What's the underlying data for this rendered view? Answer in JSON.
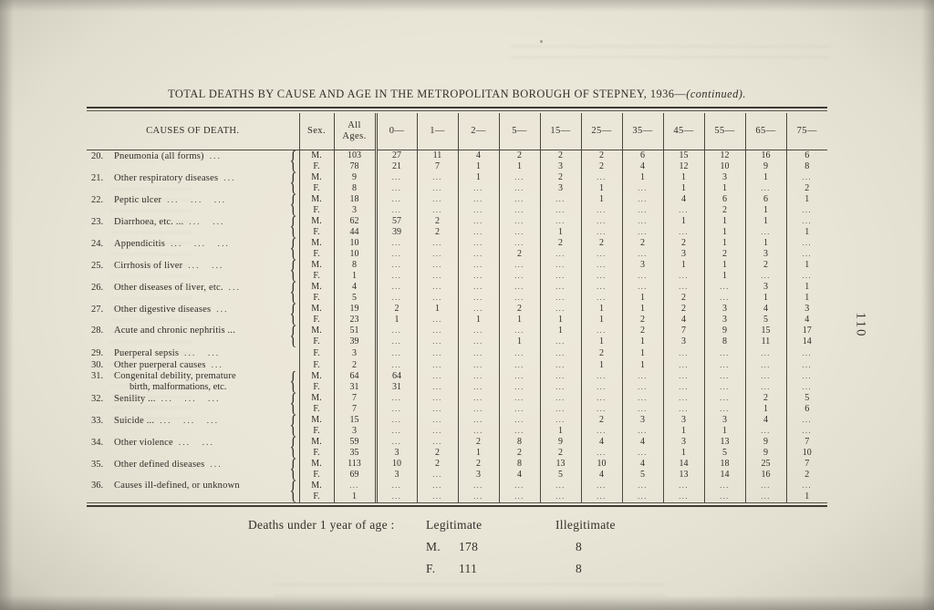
{
  "page": {
    "title_main": "TOTAL DEATHS BY CAUSE AND AGE IN THE METROPOLITAN BOROUGH OF STEPNEY, 1936—",
    "title_continued": "(continued).",
    "page_number": "110"
  },
  "table": {
    "headers": [
      "CAUSES OF DEATH.",
      "Sex.",
      "All\nAges.",
      "0—",
      "1—",
      "2—",
      "5—",
      "15—",
      "25—",
      "35—",
      "45—",
      "55—",
      "65—",
      "75—"
    ],
    "causes": [
      {
        "no": "20.",
        "label": "Pneumonia (all forms)",
        "leader": "...",
        "brace": true,
        "rows": [
          {
            "sex": "M.",
            "values": [
              "103",
              "27",
              "11",
              "4",
              "2",
              "2",
              "2",
              "6",
              "15",
              "12",
              "16",
              "6"
            ]
          },
          {
            "sex": "F.",
            "values": [
              "78",
              "21",
              "7",
              "1",
              "1",
              "3",
              "2",
              "4",
              "12",
              "10",
              "9",
              "8"
            ]
          }
        ]
      },
      {
        "no": "21.",
        "label": "Other respiratory diseases",
        "leader": "...",
        "brace": true,
        "rows": [
          {
            "sex": "M.",
            "values": [
              "9",
              "...",
              "...",
              "1",
              "...",
              "2",
              "...",
              "1",
              "1",
              "3",
              "1",
              "..."
            ]
          },
          {
            "sex": "F.",
            "values": [
              "8",
              "...",
              "...",
              "...",
              "...",
              "3",
              "1",
              "...",
              "1",
              "1",
              "...",
              "2"
            ]
          }
        ]
      },
      {
        "no": "22.",
        "label": "Peptic ulcer",
        "leader": "... ... ...",
        "brace": true,
        "rows": [
          {
            "sex": "M.",
            "values": [
              "18",
              "...",
              "...",
              "...",
              "...",
              "...",
              "1",
              "...",
              "4",
              "6",
              "6",
              "1"
            ]
          },
          {
            "sex": "F.",
            "values": [
              "3",
              "...",
              "...",
              "...",
              "...",
              "...",
              "...",
              "...",
              "...",
              "2",
              "1",
              "..."
            ]
          }
        ]
      },
      {
        "no": "23.",
        "label": "Diarrhoea, etc. ...",
        "leader": "... ...",
        "brace": true,
        "rows": [
          {
            "sex": "M.",
            "values": [
              "62",
              "57",
              "2",
              "...",
              "...",
              "...",
              "...",
              "...",
              "1",
              "1",
              "1",
              "..."
            ]
          },
          {
            "sex": "F.",
            "values": [
              "44",
              "39",
              "2",
              "...",
              "...",
              "1",
              "...",
              "...",
              "...",
              "1",
              "...",
              "1"
            ]
          }
        ]
      },
      {
        "no": "24.",
        "label": "Appendicitis",
        "leader": "... ... ...",
        "brace": true,
        "rows": [
          {
            "sex": "M.",
            "values": [
              "10",
              "...",
              "...",
              "...",
              "...",
              "2",
              "2",
              "2",
              "2",
              "1",
              "1",
              "..."
            ]
          },
          {
            "sex": "F.",
            "values": [
              "10",
              "...",
              "...",
              "...",
              "2",
              "...",
              "...",
              "...",
              "3",
              "2",
              "3",
              "..."
            ]
          }
        ]
      },
      {
        "no": "25.",
        "label": "Cirrhosis of liver",
        "leader": "... ...",
        "brace": true,
        "rows": [
          {
            "sex": "M.",
            "values": [
              "8",
              "...",
              "...",
              "...",
              "...",
              "...",
              "...",
              "3",
              "1",
              "1",
              "2",
              "1"
            ]
          },
          {
            "sex": "F.",
            "values": [
              "1",
              "...",
              "...",
              "...",
              "...",
              "...",
              "...",
              "...",
              "...",
              "1",
              "...",
              "..."
            ]
          }
        ]
      },
      {
        "no": "26.",
        "label": "Other diseases of liver, etc.",
        "leader": "...",
        "brace": true,
        "rows": [
          {
            "sex": "M.",
            "values": [
              "4",
              "...",
              "...",
              "...",
              "...",
              "...",
              "...",
              "...",
              "...",
              "...",
              "3",
              "1"
            ]
          },
          {
            "sex": "F.",
            "values": [
              "5",
              "...",
              "...",
              "...",
              "...",
              "...",
              "...",
              "1",
              "2",
              "...",
              "1",
              "1"
            ]
          }
        ]
      },
      {
        "no": "27.",
        "label": "Other digestive diseases",
        "leader": "...",
        "brace": true,
        "rows": [
          {
            "sex": "M.",
            "values": [
              "19",
              "2",
              "1",
              "...",
              "2",
              "...",
              "1",
              "1",
              "2",
              "3",
              "4",
              "3"
            ]
          },
          {
            "sex": "F.",
            "values": [
              "23",
              "1",
              "...",
              "1",
              "1",
              "1",
              "1",
              "2",
              "4",
              "3",
              "5",
              "4"
            ]
          }
        ]
      },
      {
        "no": "28.",
        "label": "Acute and chronic nephritis ...",
        "leader": "",
        "brace": true,
        "rows": [
          {
            "sex": "M.",
            "values": [
              "51",
              "...",
              "...",
              "...",
              "...",
              "1",
              "...",
              "2",
              "7",
              "9",
              "15",
              "17"
            ]
          },
          {
            "sex": "F.",
            "values": [
              "39",
              "...",
              "...",
              "...",
              "1",
              "...",
              "1",
              "1",
              "3",
              "8",
              "11",
              "14"
            ]
          }
        ]
      },
      {
        "no": "29.",
        "label": "Puerperal sepsis",
        "leader": "... ...",
        "brace": false,
        "rows": [
          {
            "sex": "F.",
            "values": [
              "3",
              "...",
              "...",
              "...",
              "...",
              "...",
              "2",
              "1",
              "...",
              "...",
              "...",
              "..."
            ]
          }
        ]
      },
      {
        "no": "30.",
        "label": "Other puerperal causes",
        "leader": "...",
        "brace": false,
        "rows": [
          {
            "sex": "F.",
            "values": [
              "2",
              "...",
              "...",
              "...",
              "...",
              "...",
              "1",
              "1",
              "...",
              "...",
              "...",
              "..."
            ]
          }
        ]
      },
      {
        "no": "31.",
        "label": "Congenital debility, premature",
        "label2": "birth, malformations, etc.",
        "leader": "",
        "brace": true,
        "rows": [
          {
            "sex": "M.",
            "values": [
              "64",
              "64",
              "...",
              "...",
              "...",
              "...",
              "...",
              "...",
              "...",
              "...",
              "...",
              "..."
            ]
          },
          {
            "sex": "F.",
            "values": [
              "31",
              "31",
              "...",
              "...",
              "...",
              "...",
              "...",
              "...",
              "...",
              "...",
              "...",
              "..."
            ]
          }
        ]
      },
      {
        "no": "32.",
        "label": "Senility ...",
        "leader": "... ... ...",
        "brace": true,
        "rows": [
          {
            "sex": "M.",
            "values": [
              "7",
              "...",
              "...",
              "...",
              "...",
              "...",
              "...",
              "...",
              "...",
              "...",
              "2",
              "5"
            ]
          },
          {
            "sex": "F.",
            "values": [
              "7",
              "...",
              "...",
              "...",
              "...",
              "...",
              "...",
              "...",
              "...",
              "...",
              "1",
              "6"
            ]
          }
        ]
      },
      {
        "no": "33.",
        "label": "Suicide ...",
        "leader": "... ... ...",
        "brace": true,
        "rows": [
          {
            "sex": "M.",
            "values": [
              "15",
              "...",
              "...",
              "...",
              "...",
              "...",
              "2",
              "3",
              "3",
              "3",
              "4",
              "..."
            ]
          },
          {
            "sex": "F.",
            "values": [
              "3",
              "...",
              "...",
              "...",
              "...",
              "1",
              "...",
              "...",
              "1",
              "1",
              "...",
              "..."
            ]
          }
        ]
      },
      {
        "no": "34.",
        "label": "Other violence",
        "leader": "... ...",
        "brace": true,
        "rows": [
          {
            "sex": "M.",
            "values": [
              "59",
              "...",
              "...",
              "2",
              "8",
              "9",
              "4",
              "4",
              "3",
              "13",
              "9",
              "7"
            ]
          },
          {
            "sex": "F.",
            "values": [
              "35",
              "3",
              "2",
              "1",
              "2",
              "2",
              "...",
              "...",
              "1",
              "5",
              "9",
              "10"
            ]
          }
        ]
      },
      {
        "no": "35.",
        "label": "Other defined diseases",
        "leader": "...",
        "brace": true,
        "rows": [
          {
            "sex": "M.",
            "values": [
              "113",
              "10",
              "2",
              "2",
              "8",
              "13",
              "10",
              "4",
              "14",
              "18",
              "25",
              "7"
            ]
          },
          {
            "sex": "F.",
            "values": [
              "69",
              "3",
              "...",
              "3",
              "4",
              "5",
              "4",
              "5",
              "13",
              "14",
              "16",
              "2"
            ]
          }
        ]
      },
      {
        "no": "36.",
        "label": "Causes ill-defined, or unknown",
        "leader": "",
        "brace": true,
        "rows": [
          {
            "sex": "M.",
            "values": [
              "...",
              "...",
              "...",
              "...",
              "...",
              "...",
              "...",
              "...",
              "...",
              "...",
              "...",
              "..."
            ]
          },
          {
            "sex": "F.",
            "values": [
              "1",
              "...",
              "...",
              "...",
              "...",
              "...",
              "...",
              "...",
              "...",
              "...",
              "...",
              "1"
            ]
          }
        ]
      }
    ]
  },
  "footer": {
    "label": "Deaths under 1 year of age :",
    "col_legitimate": "Legitimate",
    "col_illegitimate": "Illegitimate",
    "rows": [
      {
        "sex": "M.",
        "legitimate": "178",
        "illegitimate": "8"
      },
      {
        "sex": "F.",
        "legitimate": "111",
        "illegitimate": "8"
      }
    ]
  }
}
